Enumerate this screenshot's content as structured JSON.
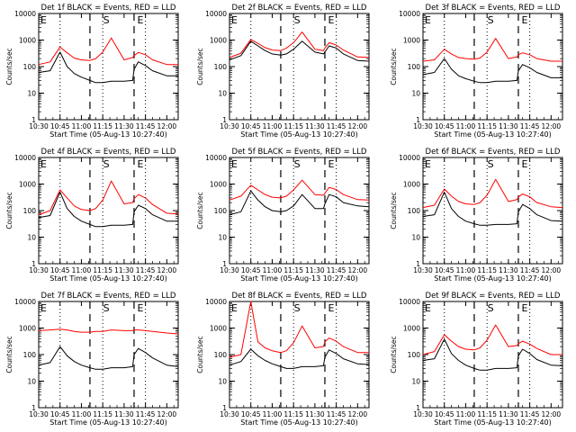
{
  "chart_data": [
    {
      "type": "line",
      "title": "Det 1f BLACK = Events, RED = LLD",
      "xlabel": "Start Time (05-Aug-13 10:27:40)",
      "ylabel": "Counts/sec",
      "yscale": "log",
      "ylim": [
        1,
        10000
      ],
      "xlim": [
        "10:30",
        "12:08"
      ],
      "series": [
        {
          "name": "Events",
          "color": "#000000",
          "x": [
            0,
            8,
            15,
            20,
            25,
            30,
            36,
            40,
            45,
            51,
            60,
            66,
            67,
            70,
            75,
            80,
            90,
            98
          ],
          "values": [
            60,
            70,
            350,
            100,
            55,
            40,
            30,
            25,
            25,
            28,
            28,
            30,
            80,
            150,
            110,
            70,
            45,
            45
          ]
        },
        {
          "name": "LLD",
          "color": "#ff0000",
          "x": [
            0,
            8,
            15,
            20,
            25,
            30,
            36,
            40,
            45,
            51,
            60,
            66,
            67,
            70,
            75,
            80,
            90,
            98
          ],
          "values": [
            120,
            150,
            550,
            330,
            210,
            180,
            170,
            200,
            350,
            1200,
            180,
            220,
            260,
            340,
            280,
            180,
            120,
            120
          ]
        }
      ]
    },
    {
      "type": "line",
      "title": "Det 2f BLACK = Events, RED = LLD",
      "xlabel": "Start Time (05-Aug-13 10:27:40)",
      "ylabel": "Counts/sec",
      "yscale": "log",
      "ylim": [
        1,
        10000
      ],
      "xlim": [
        "10:30",
        "12:08"
      ],
      "series": [
        {
          "name": "Events",
          "color": "#000000",
          "x": [
            0,
            8,
            15,
            20,
            25,
            30,
            36,
            40,
            45,
            51,
            60,
            66,
            67,
            70,
            75,
            80,
            90,
            98
          ],
          "values": [
            180,
            260,
            900,
            600,
            400,
            300,
            270,
            300,
            450,
            900,
            350,
            300,
            350,
            600,
            500,
            300,
            170,
            160
          ]
        },
        {
          "name": "LLD",
          "color": "#ff0000",
          "x": [
            0,
            8,
            15,
            20,
            25,
            30,
            36,
            40,
            45,
            51,
            60,
            66,
            67,
            70,
            75,
            80,
            90,
            98
          ],
          "values": [
            220,
            320,
            1050,
            750,
            520,
            420,
            400,
            500,
            800,
            2000,
            450,
            400,
            500,
            800,
            650,
            420,
            230,
            220
          ]
        }
      ]
    },
    {
      "type": "line",
      "title": "Det 3f BLACK = Events, RED = LLD",
      "xlabel": "Start Time (05-Aug-13 10:27:40)",
      "ylabel": "Counts/sec",
      "yscale": "log",
      "ylim": [
        1,
        10000
      ],
      "xlim": [
        "10:30",
        "12:08"
      ],
      "series": [
        {
          "name": "Events",
          "color": "#000000",
          "x": [
            0,
            8,
            15,
            20,
            25,
            30,
            36,
            40,
            45,
            51,
            60,
            66,
            67,
            70,
            75,
            80,
            90,
            98
          ],
          "values": [
            50,
            60,
            200,
            80,
            45,
            35,
            28,
            25,
            25,
            28,
            28,
            30,
            70,
            120,
            90,
            60,
            38,
            38
          ]
        },
        {
          "name": "LLD",
          "color": "#ff0000",
          "x": [
            0,
            8,
            15,
            20,
            25,
            30,
            36,
            40,
            45,
            51,
            60,
            66,
            67,
            70,
            75,
            80,
            90,
            98
          ],
          "values": [
            160,
            180,
            450,
            300,
            220,
            200,
            190,
            210,
            350,
            1150,
            200,
            230,
            280,
            330,
            280,
            200,
            160,
            160
          ]
        }
      ]
    },
    {
      "type": "line",
      "title": "Det 4f BLACK = Events, RED = LLD",
      "xlabel": "Start Time (05-Aug-13 10:27:40)",
      "ylabel": "Counts/sec",
      "yscale": "log",
      "ylim": [
        1,
        10000
      ],
      "xlim": [
        "10:30",
        "12:08"
      ],
      "series": [
        {
          "name": "Events",
          "color": "#000000",
          "x": [
            0,
            8,
            15,
            20,
            25,
            30,
            36,
            40,
            45,
            51,
            60,
            66,
            67,
            70,
            75,
            80,
            90,
            98
          ],
          "values": [
            55,
            65,
            500,
            120,
            60,
            40,
            30,
            25,
            25,
            28,
            28,
            30,
            90,
            160,
            120,
            70,
            40,
            40
          ]
        },
        {
          "name": "LLD",
          "color": "#ff0000",
          "x": [
            0,
            8,
            15,
            20,
            25,
            30,
            36,
            40,
            45,
            51,
            60,
            66,
            67,
            70,
            75,
            80,
            90,
            98
          ],
          "values": [
            70,
            100,
            600,
            300,
            150,
            110,
            100,
            120,
            250,
            1300,
            180,
            200,
            280,
            400,
            300,
            170,
            80,
            75
          ]
        }
      ]
    },
    {
      "type": "line",
      "title": "Det 5f BLACK = Events, RED = LLD",
      "xlabel": "Start Time (05-Aug-13 10:27:40)",
      "ylabel": "Counts/sec",
      "yscale": "log",
      "ylim": [
        1,
        10000
      ],
      "xlim": [
        "10:30",
        "12:08"
      ],
      "series": [
        {
          "name": "Events",
          "color": "#000000",
          "x": [
            0,
            8,
            15,
            20,
            25,
            30,
            36,
            40,
            45,
            51,
            60,
            66,
            67,
            70,
            75,
            80,
            90,
            98
          ],
          "values": [
            70,
            90,
            550,
            250,
            140,
            100,
            90,
            100,
            150,
            400,
            120,
            120,
            180,
            400,
            330,
            200,
            150,
            140
          ]
        },
        {
          "name": "LLD",
          "color": "#ff0000",
          "x": [
            0,
            8,
            15,
            20,
            25,
            30,
            36,
            40,
            45,
            51,
            60,
            66,
            67,
            70,
            75,
            80,
            90,
            98
          ],
          "values": [
            250,
            350,
            900,
            600,
            400,
            320,
            300,
            350,
            600,
            1400,
            400,
            380,
            450,
            750,
            620,
            400,
            260,
            250
          ]
        }
      ]
    },
    {
      "type": "line",
      "title": "Det 6f BLACK = Events, RED = LLD",
      "xlabel": "Start Time (05-Aug-13 10:27:40)",
      "ylabel": "Counts/sec",
      "yscale": "log",
      "ylim": [
        1,
        10000
      ],
      "xlim": [
        "10:30",
        "12:08"
      ],
      "series": [
        {
          "name": "Events",
          "color": "#000000",
          "x": [
            0,
            8,
            15,
            20,
            25,
            30,
            36,
            40,
            45,
            51,
            60,
            66,
            67,
            70,
            75,
            80,
            90,
            98
          ],
          "values": [
            60,
            70,
            500,
            120,
            60,
            40,
            32,
            28,
            28,
            30,
            30,
            32,
            90,
            170,
            120,
            70,
            42,
            40
          ]
        },
        {
          "name": "LLD",
          "color": "#ff0000",
          "x": [
            0,
            8,
            15,
            20,
            25,
            30,
            36,
            40,
            45,
            51,
            60,
            66,
            67,
            70,
            75,
            80,
            90,
            98
          ],
          "values": [
            130,
            160,
            650,
            350,
            220,
            180,
            170,
            200,
            380,
            1500,
            220,
            260,
            330,
            420,
            330,
            200,
            140,
            130
          ]
        }
      ]
    },
    {
      "type": "line",
      "title": "Det 7f BLACK = Events, RED = LLD",
      "xlabel": "Start Time (05-Aug-13 10:27:40)",
      "ylabel": "Counts/sec",
      "yscale": "log",
      "ylim": [
        1,
        10000
      ],
      "xlim": [
        "10:30",
        "12:08"
      ],
      "series": [
        {
          "name": "Events",
          "color": "#000000",
          "x": [
            0,
            8,
            15,
            20,
            25,
            30,
            36,
            40,
            45,
            51,
            60,
            66,
            67,
            70,
            75,
            80,
            90,
            98
          ],
          "values": [
            40,
            50,
            200,
            90,
            55,
            40,
            32,
            28,
            28,
            32,
            32,
            35,
            100,
            170,
            120,
            75,
            40,
            35
          ]
        },
        {
          "name": "LLD",
          "color": "#ff0000",
          "x": [
            0,
            8,
            15,
            20,
            25,
            30,
            36,
            40,
            45,
            51,
            60,
            66,
            67,
            70,
            75,
            80,
            90,
            98
          ],
          "values": [
            800,
            850,
            900,
            850,
            750,
            700,
            700,
            750,
            750,
            850,
            800,
            800,
            850,
            850,
            800,
            750,
            650,
            600
          ]
        }
      ]
    },
    {
      "type": "line",
      "title": "Det 8f BLACK = Events, RED = LLD",
      "xlabel": "Start Time (05-Aug-13 10:27:40)",
      "ylabel": "Counts/sec",
      "yscale": "log",
      "ylim": [
        1,
        10000
      ],
      "xlim": [
        "10:30",
        "12:08"
      ],
      "series": [
        {
          "name": "Events",
          "color": "#000000",
          "x": [
            0,
            8,
            15,
            20,
            25,
            30,
            36,
            40,
            45,
            51,
            60,
            66,
            67,
            70,
            75,
            80,
            90,
            98
          ],
          "values": [
            40,
            55,
            160,
            90,
            60,
            45,
            35,
            30,
            30,
            35,
            35,
            38,
            80,
            150,
            110,
            70,
            45,
            42
          ]
        },
        {
          "name": "LLD",
          "color": "#ff0000",
          "x": [
            0,
            8,
            15,
            20,
            25,
            30,
            36,
            40,
            45,
            51,
            60,
            66,
            67,
            70,
            75,
            80,
            90,
            98
          ],
          "values": [
            80,
            100,
            10000,
            300,
            180,
            140,
            120,
            140,
            280,
            1200,
            180,
            200,
            300,
            420,
            320,
            200,
            120,
            120
          ]
        }
      ]
    },
    {
      "type": "line",
      "title": "Det 9f BLACK = Events, RED = LLD",
      "xlabel": "Start Time (05-Aug-13 10:27:40)",
      "ylabel": "Counts/sec",
      "yscale": "log",
      "ylim": [
        1,
        10000
      ],
      "xlim": [
        "10:30",
        "12:08"
      ],
      "series": [
        {
          "name": "Events",
          "color": "#000000",
          "x": [
            0,
            8,
            15,
            20,
            25,
            30,
            36,
            40,
            45,
            51,
            60,
            66,
            67,
            70,
            75,
            80,
            90,
            98
          ],
          "values": [
            60,
            70,
            380,
            110,
            60,
            40,
            30,
            26,
            26,
            30,
            30,
            32,
            90,
            160,
            110,
            65,
            40,
            38
          ]
        },
        {
          "name": "LLD",
          "color": "#ff0000",
          "x": [
            0,
            8,
            15,
            20,
            25,
            30,
            36,
            40,
            45,
            51,
            60,
            66,
            67,
            70,
            75,
            80,
            90,
            98
          ],
          "values": [
            100,
            130,
            560,
            320,
            200,
            160,
            150,
            180,
            350,
            1300,
            200,
            220,
            260,
            320,
            250,
            170,
            100,
            100
          ]
        }
      ]
    }
  ],
  "shared": {
    "x_ticks": [
      "10:30",
      "10:45",
      "11:00",
      "11:15",
      "11:30",
      "11:45",
      "12:00"
    ],
    "x_tick_minutes": [
      0,
      15,
      30,
      45,
      60,
      75,
      90
    ],
    "y_ticks": [
      "1",
      "10",
      "100",
      "1000",
      "10000"
    ],
    "y_tick_values": [
      1,
      10,
      100,
      1000,
      10000
    ],
    "dotted_lines_minutes": [
      15,
      45,
      75
    ],
    "dashed_lines_minutes": [
      36,
      67
    ],
    "marker_labels": [
      "E",
      "S",
      "E"
    ],
    "marker_label_minutes": [
      0,
      44,
      68
    ]
  }
}
